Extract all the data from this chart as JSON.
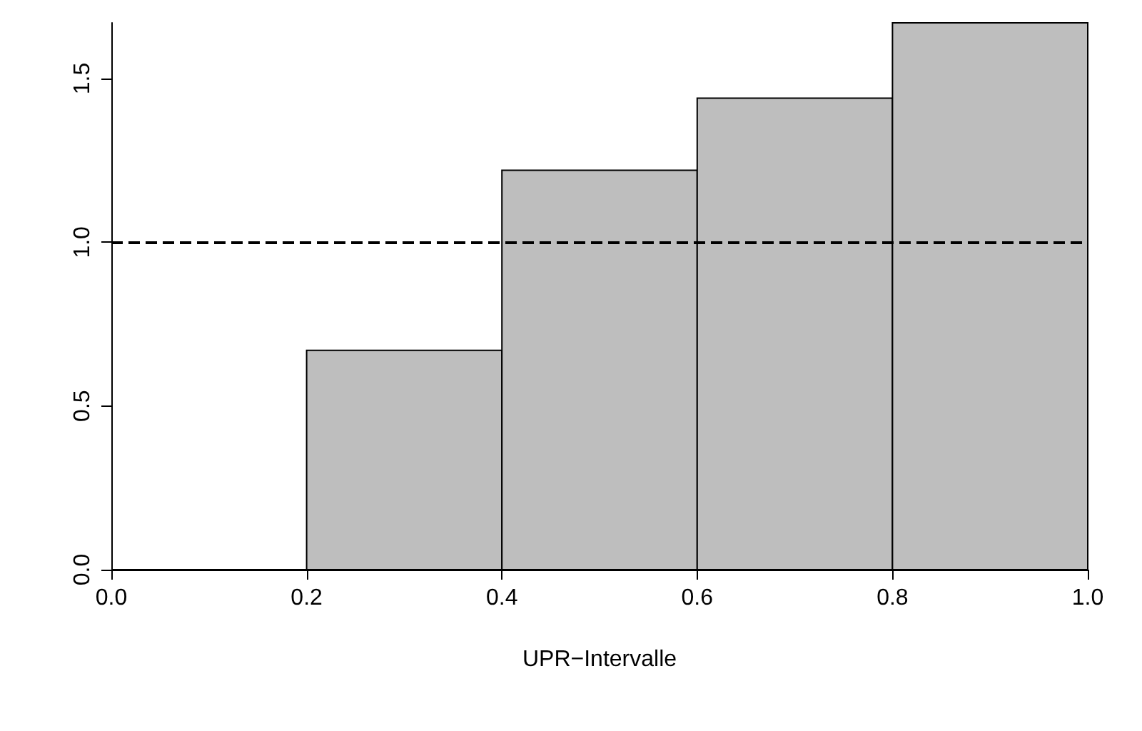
{
  "chart_data": {
    "type": "histogram",
    "xlabel": "UPR−Intervalle",
    "bins": [
      0,
      0.2,
      0.4,
      0.6,
      0.8,
      1.0
    ],
    "values": [
      0,
      0.67,
      1.22,
      1.44,
      1.67
    ],
    "color": "#bebebe",
    "xlim": [
      0,
      1
    ],
    "xticks": [
      {
        "value": 0,
        "label": "0.0"
      },
      {
        "value": 0.2,
        "label": "0.2"
      },
      {
        "value": 0.4,
        "label": "0.4"
      },
      {
        "value": 0.6,
        "label": "0.6"
      },
      {
        "value": 0.8,
        "label": "0.8"
      },
      {
        "value": 1,
        "label": "1.0"
      }
    ],
    "ylim": [
      0,
      1.67
    ],
    "yticks": [
      {
        "value": 0,
        "label": "0.0"
      },
      {
        "value": 0.5,
        "label": "0.5"
      },
      {
        "value": 1,
        "label": "1.0"
      },
      {
        "value": 1.5,
        "label": "1.5"
      }
    ],
    "ref_lines": [
      {
        "axis": "y",
        "value": 1,
        "line_style": "dashed",
        "color": "#000000"
      }
    ],
    "grid": false
  }
}
